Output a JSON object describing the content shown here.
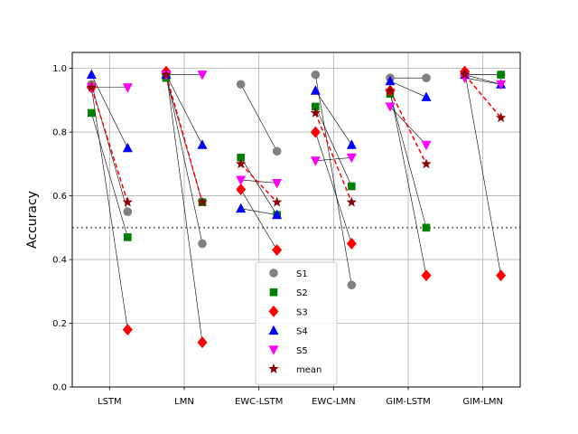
{
  "chart_data": {
    "type": "scatter",
    "title": "",
    "xlabel": "",
    "ylabel": "Accuracy",
    "ylim": [
      0,
      1.05
    ],
    "yticks": [
      0.0,
      0.2,
      0.4,
      0.6,
      0.8,
      1.0
    ],
    "ytick_labels": [
      "0.0",
      "0.2",
      "0.4",
      "0.6",
      "0.8",
      "1.0"
    ],
    "categories": [
      "LSTM",
      "LMN",
      "EWC-LSTM",
      "EWC-LMN",
      "GIM-LSTM",
      "GIM-LMN"
    ],
    "grid": true,
    "chance_level": 0.5,
    "legend_position": "lower center",
    "series": [
      {
        "name": "S1",
        "marker": "circle",
        "color": "#808080",
        "before": [
          0.95,
          0.98,
          0.95,
          0.98,
          0.97,
          0.98
        ],
        "after": [
          0.55,
          0.45,
          0.74,
          0.32,
          0.97,
          0.98
        ]
      },
      {
        "name": "S2",
        "marker": "square",
        "color": "#008000",
        "before": [
          0.86,
          0.97,
          0.72,
          0.88,
          0.92,
          0.98
        ],
        "after": [
          0.47,
          0.58,
          0.54,
          0.63,
          0.5,
          0.98
        ]
      },
      {
        "name": "S3",
        "marker": "diamond",
        "color": "#ff0000",
        "before": [
          0.94,
          0.99,
          0.62,
          0.8,
          0.93,
          0.99
        ],
        "after": [
          0.18,
          0.14,
          0.43,
          0.45,
          0.35,
          0.35
        ]
      },
      {
        "name": "S4",
        "marker": "triangle-up",
        "color": "#0000ff",
        "before": [
          0.98,
          0.98,
          0.56,
          0.93,
          0.96,
          0.98
        ],
        "after": [
          0.75,
          0.76,
          0.54,
          0.76,
          0.91,
          0.95
        ]
      },
      {
        "name": "S5",
        "marker": "triangle-down",
        "color": "#ff00ff",
        "before": [
          0.94,
          0.98,
          0.65,
          0.71,
          0.88,
          0.97
        ],
        "after": [
          0.94,
          0.98,
          0.64,
          0.72,
          0.76,
          0.95
        ]
      },
      {
        "name": "mean",
        "marker": "star",
        "color": "#8b0000",
        "before": [
          0.94,
          0.98,
          0.7,
          0.86,
          0.93,
          0.98
        ],
        "after": [
          0.58,
          0.58,
          0.58,
          0.58,
          0.7,
          0.845
        ]
      }
    ]
  }
}
